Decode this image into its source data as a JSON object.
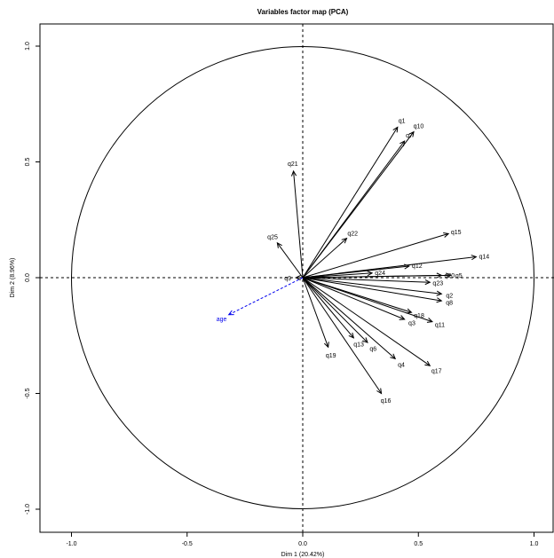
{
  "chart_data": {
    "type": "scatter",
    "title": "Variables factor map (PCA)",
    "xlabel": "Dim 1 (20.42%)",
    "ylabel": "Dim 2 (8.96%)",
    "xlim": [
      -1.1,
      1.1
    ],
    "ylim": [
      -1.1,
      1.1
    ],
    "x_ticks": [
      "-1.0",
      "-0.5",
      "0.0",
      "0.5",
      "1.0"
    ],
    "y_ticks": [
      "-1.0",
      "-0.5",
      "0.0",
      "0.5",
      "1.0"
    ],
    "correlation_circle_radius": 1.0,
    "reference_lines": "dashed at x=0 and y=0",
    "variables": [
      {
        "label": "q1",
        "x": 0.41,
        "y": 0.65
      },
      {
        "label": "q2",
        "x": 0.6,
        "y": -0.07
      },
      {
        "label": "q3",
        "x": 0.44,
        "y": -0.18
      },
      {
        "label": "q4",
        "x": 0.4,
        "y": -0.35
      },
      {
        "label": "q5",
        "x": 0.64,
        "y": 0.01
      },
      {
        "label": "q6",
        "x": 0.28,
        "y": -0.28
      },
      {
        "label": "q7",
        "x": 0.44,
        "y": 0.59
      },
      {
        "label": "q8",
        "x": 0.6,
        "y": -0.1
      },
      {
        "label": "q9",
        "x": -0.03,
        "y": 0.0
      },
      {
        "label": "q10",
        "x": 0.48,
        "y": 0.63
      },
      {
        "label": "q11",
        "x": 0.56,
        "y": -0.19
      },
      {
        "label": "q12",
        "x": 0.46,
        "y": 0.05
      },
      {
        "label": "q13",
        "x": 0.22,
        "y": -0.26
      },
      {
        "label": "q14",
        "x": 0.75,
        "y": 0.09
      },
      {
        "label": "q15",
        "x": 0.63,
        "y": 0.19
      },
      {
        "label": "q16",
        "x": 0.34,
        "y": -0.5
      },
      {
        "label": "q17",
        "x": 0.55,
        "y": -0.38
      },
      {
        "label": "q18",
        "x": 0.47,
        "y": -0.15
      },
      {
        "label": "q19",
        "x": 0.11,
        "y": -0.3
      },
      {
        "label": "q20",
        "x": 0.6,
        "y": 0.01
      },
      {
        "label": "q21",
        "x": -0.04,
        "y": 0.46
      },
      {
        "label": "q22",
        "x": 0.19,
        "y": 0.17
      },
      {
        "label": "q23",
        "x": 0.55,
        "y": -0.02
      },
      {
        "label": "q24",
        "x": 0.3,
        "y": 0.02
      },
      {
        "label": "q25",
        "x": -0.11,
        "y": 0.15
      }
    ],
    "supplementary_variables": [
      {
        "label": "age",
        "x": -0.32,
        "y": -0.16,
        "color": "#0000ee",
        "style": "dashed"
      }
    ]
  }
}
